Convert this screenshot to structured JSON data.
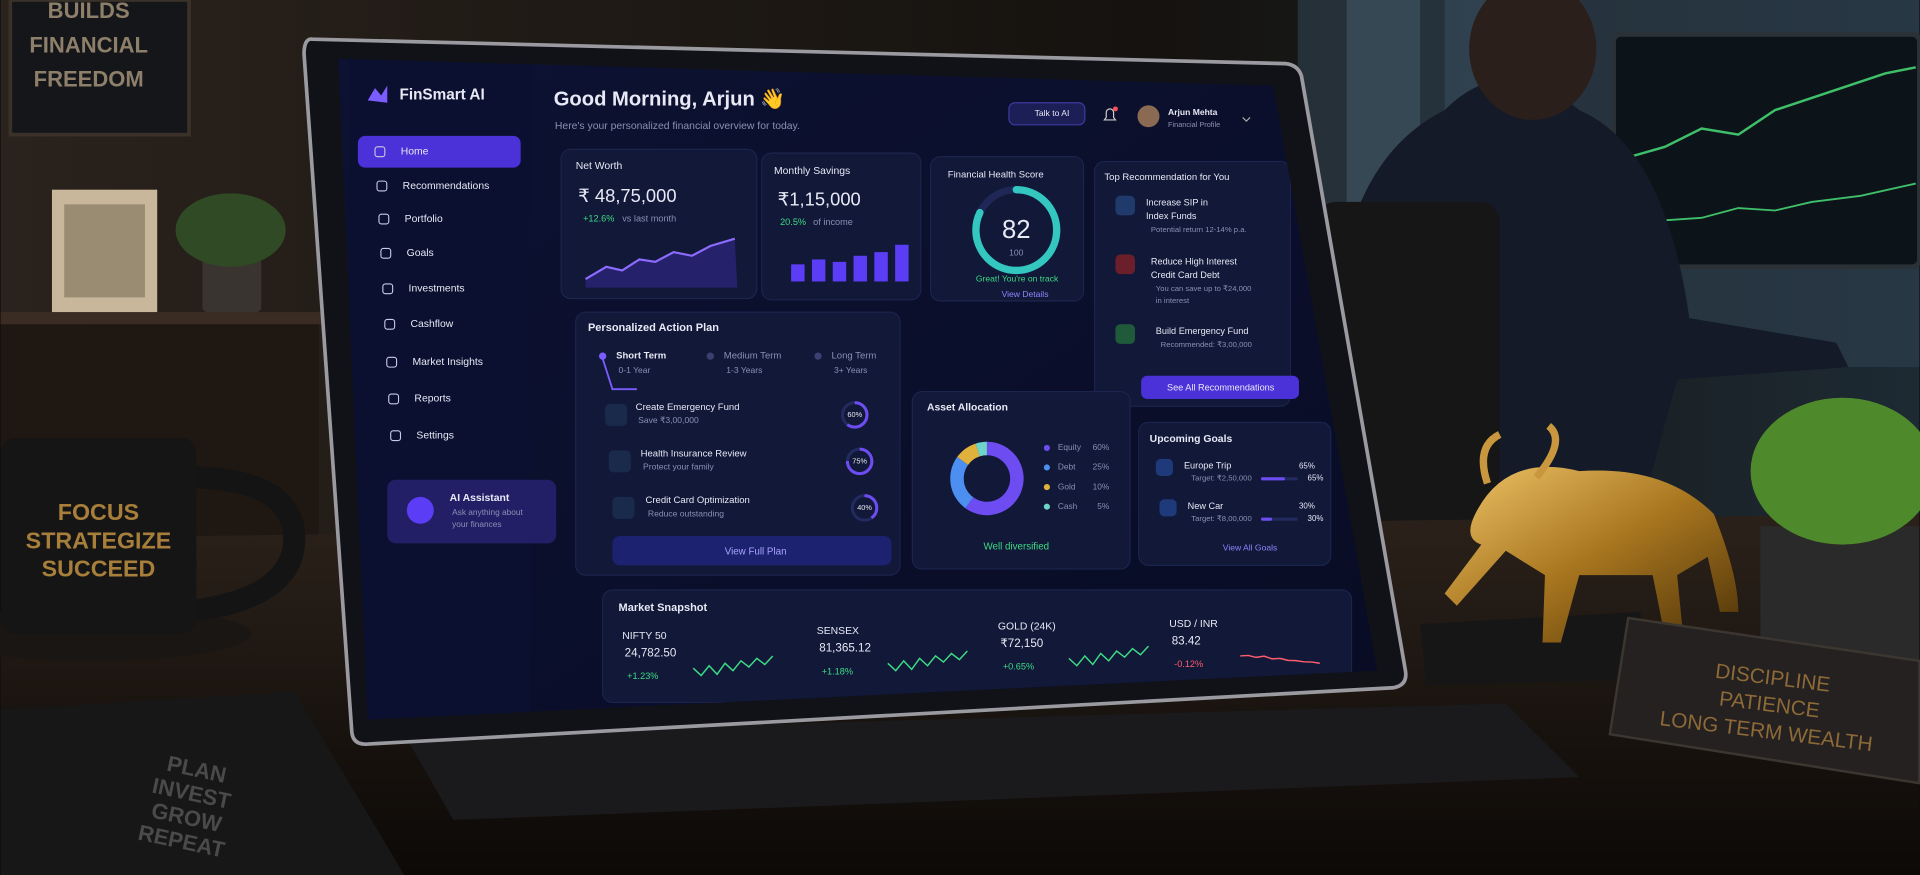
{
  "scene": {
    "poster": [
      "BUILDS",
      "FINANCIAL",
      "FREEDOM"
    ],
    "mug": [
      "FOCUS",
      "STRATEGIZE",
      "SUCCEED"
    ],
    "notebook": [
      "PLAN",
      "INVEST",
      "GROW",
      "REPEAT"
    ],
    "plaque": [
      "DISCIPLINE",
      "PATIENCE",
      "LONG TERM WEALTH"
    ]
  },
  "sidebar": {
    "brand": "FinSmart AI",
    "nav": [
      "Home",
      "Recommendations",
      "Portfolio",
      "Goals",
      "Investments",
      "Cashflow",
      "Market Insights",
      "Reports",
      "Settings"
    ],
    "assistant": {
      "title": "AI Assistant",
      "lines": [
        "Ask anything about",
        "your finances"
      ]
    }
  },
  "header": {
    "greeting": "Good Morning, Arjun 👋",
    "subtitle": "Here's your personalized financial overview for today.",
    "talk_button": "Talk to AI",
    "user_name": "Arjun Mehta",
    "user_role": "Financial Profile"
  },
  "net_worth": {
    "title": "Net Worth",
    "value": "₹ 48,75,000",
    "change": "+12.6%",
    "change_note": "vs last month"
  },
  "monthly_savings": {
    "title": "Monthly Savings",
    "value": "₹1,15,000",
    "rate": "20.5%",
    "rate_note": "of income"
  },
  "health_score": {
    "title": "Financial Health Score",
    "score": 82,
    "max": 100,
    "status": "Great! You're on track",
    "link": "View Details"
  },
  "recommendations": {
    "title": "Top Recommendation for You",
    "items": [
      {
        "title": [
          "Increase SIP in",
          "Index Funds"
        ],
        "detail": [
          "Potential return 12-14% p.a."
        ]
      },
      {
        "title": [
          "Reduce High Interest",
          "Credit Card Debt"
        ],
        "detail": [
          "You can save up to ₹24,000",
          "in interest"
        ]
      },
      {
        "title": [
          "Build Emergency Fund"
        ],
        "detail": [
          "Recommended: ₹3,00,000"
        ]
      }
    ],
    "button": "See All Recommendations"
  },
  "action_plan": {
    "title": "Personalized Action Plan",
    "tabs": [
      {
        "name": "Short Term",
        "range": "0-1 Year"
      },
      {
        "name": "Medium Term",
        "range": "1-3 Years"
      },
      {
        "name": "Long Term",
        "range": "3+ Years"
      }
    ],
    "items": [
      {
        "title": "Create Emergency Fund",
        "detail": "Save ₹3,00,000",
        "value": 60,
        "label": "60%"
      },
      {
        "title": "Health Insurance Review",
        "detail": "Protect your family",
        "value": 75,
        "label": "75%"
      },
      {
        "title": "Credit Card Optimization",
        "detail": "Reduce outstanding",
        "value": 40,
        "label": "40%"
      }
    ],
    "button": "View Full Plan"
  },
  "asset_allocation": {
    "title": "Asset Allocation",
    "items": [
      {
        "name": "Equity",
        "value": 60,
        "label": "60%",
        "color": "#6d4df2"
      },
      {
        "name": "Debt",
        "value": 25,
        "label": "25%",
        "color": "#4c8ff0"
      },
      {
        "name": "Gold",
        "value": 10,
        "label": "10%",
        "color": "#e0b23c"
      },
      {
        "name": "Cash",
        "value": 5,
        "label": "5%",
        "color": "#6fd4c8"
      }
    ],
    "note": "Well diversified"
  },
  "goals": {
    "title": "Upcoming Goals",
    "items": [
      {
        "name": "Europe Trip",
        "target": "Target: ₹2,50,000",
        "value": 65,
        "label": "65%"
      },
      {
        "name": "New Car",
        "target": "Target: ₹8,00,000",
        "value": 30,
        "label": "30%"
      }
    ],
    "link": "View All Goals"
  },
  "market": {
    "title": "Market Snapshot",
    "items": [
      {
        "name": "NIFTY 50",
        "value": "24,782.50",
        "change": "+1.23%",
        "up": true
      },
      {
        "name": "SENSEX",
        "value": "81,365.12",
        "change": "+1.18%",
        "up": true
      },
      {
        "name": "GOLD (24K)",
        "value": "₹72,150",
        "change": "+0.65%",
        "up": true
      },
      {
        "name": "USD / INR",
        "value": "83.42",
        "change": "-0.12%",
        "up": false
      }
    ]
  }
}
